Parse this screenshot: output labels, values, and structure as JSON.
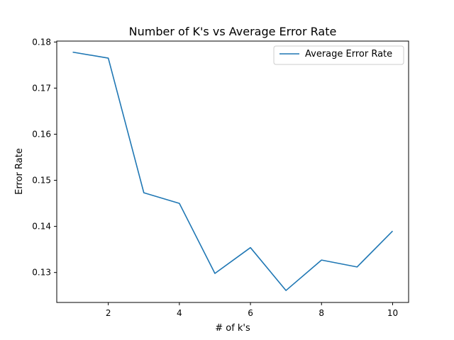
{
  "chart_data": {
    "type": "line",
    "title": "Number of K's vs Average Error Rate",
    "xlabel": "# of k's",
    "ylabel": "Error Rate",
    "xlim": [
      0.55,
      10.45
    ],
    "ylim": [
      0.1235,
      0.1802
    ],
    "xticks": [
      2,
      4,
      6,
      8,
      10
    ],
    "xtick_labels": [
      "2",
      "4",
      "6",
      "8",
      "10"
    ],
    "yticks": [
      0.13,
      0.14,
      0.15,
      0.16,
      0.17,
      0.18
    ],
    "ytick_labels": [
      "0.13",
      "0.14",
      "0.15",
      "0.16",
      "0.17",
      "0.18"
    ],
    "grid": false,
    "legend_position": "upper-right",
    "series": [
      {
        "name": "Average Error Rate",
        "color": "#1f77b4",
        "x": [
          1,
          2,
          3,
          4,
          5,
          6,
          7,
          8,
          9,
          10
        ],
        "y": [
          0.1778,
          0.1765,
          0.1473,
          0.145,
          0.1298,
          0.1354,
          0.1261,
          0.1327,
          0.1312,
          0.139
        ]
      }
    ]
  }
}
